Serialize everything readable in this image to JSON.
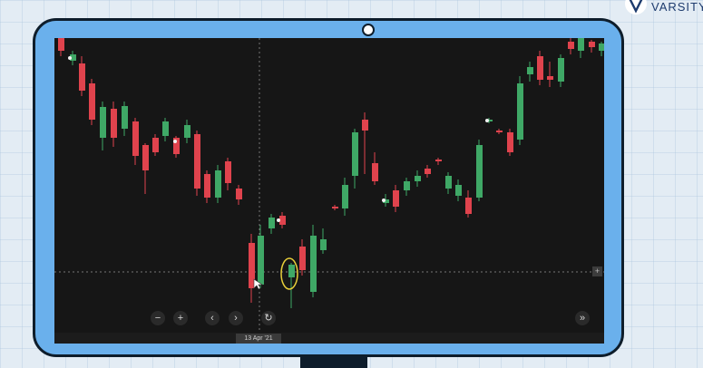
{
  "brand": {
    "name": "VARSITY"
  },
  "chart": {
    "crosshair_date": "13 Apr '21",
    "colors": {
      "up": "#3fa866",
      "down": "#e0434d",
      "background": "#161616",
      "highlight": "#e8cf3a"
    }
  },
  "controls": [
    {
      "name": "zoom-out-button",
      "glyph": "−"
    },
    {
      "name": "zoom-in-button",
      "glyph": "+"
    },
    {
      "name": "scroll-left-button",
      "glyph": "‹"
    },
    {
      "name": "scroll-right-button",
      "glyph": "›"
    },
    {
      "name": "reset-chart-button",
      "glyph": "↻"
    },
    {
      "name": "scroll-to-latest-button",
      "glyph": "»"
    }
  ]
}
